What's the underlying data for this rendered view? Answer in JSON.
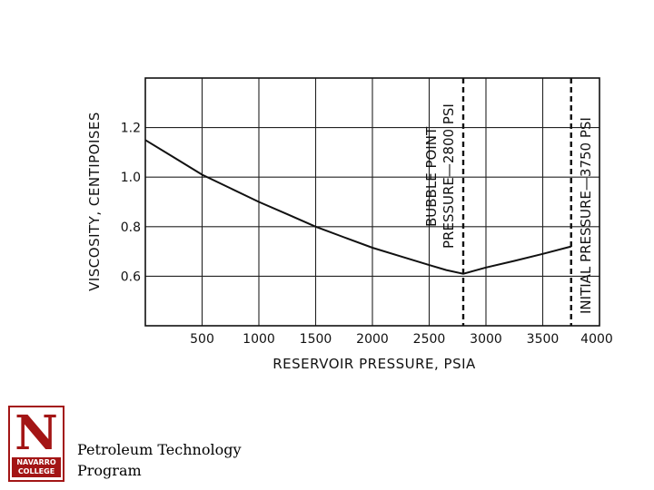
{
  "chart_data": {
    "type": "line",
    "xlabel": "RESERVOIR PRESSURE, PSIA",
    "ylabel": "VISCOSITY, CENTIPOISES",
    "xlim": [
      0,
      4000
    ],
    "ylim": [
      0.4,
      1.4
    ],
    "x_ticks": [
      500,
      1000,
      1500,
      2000,
      2500,
      3000,
      3500,
      4000
    ],
    "x_tick_labels": [
      "500",
      "1000",
      "1500",
      "2000",
      "2500",
      "3000",
      "3500",
      "4000"
    ],
    "y_ticks": [
      0.6,
      0.8,
      1.0,
      1.2
    ],
    "y_tick_labels": [
      "0.6",
      "0.8",
      "1.0",
      "1.2"
    ],
    "grid": true,
    "series": [
      {
        "x": [
          0,
          250,
          500,
          750,
          1000,
          1250,
          1500,
          1750,
          2000,
          2250,
          2500,
          2650,
          2800,
          3000,
          3250,
          3500,
          3750
        ],
        "values": [
          1.15,
          1.08,
          1.01,
          0.955,
          0.9,
          0.85,
          0.8,
          0.757,
          0.715,
          0.68,
          0.645,
          0.625,
          0.61,
          0.635,
          0.662,
          0.69,
          0.72
        ]
      }
    ],
    "annotations": [
      {
        "x": 2800,
        "line1": "BUBBLE POINT",
        "line2": "PRESSURE—2800 PSI"
      },
      {
        "x": 3750,
        "line1": "INITIAL PRESSURE—3750 PSI"
      }
    ]
  },
  "footer": {
    "logo_letter": "N",
    "logo_line1": "NAVARRO",
    "logo_line2": "COLLEGE",
    "line1": "Petroleum Technology",
    "line2": "Program"
  }
}
